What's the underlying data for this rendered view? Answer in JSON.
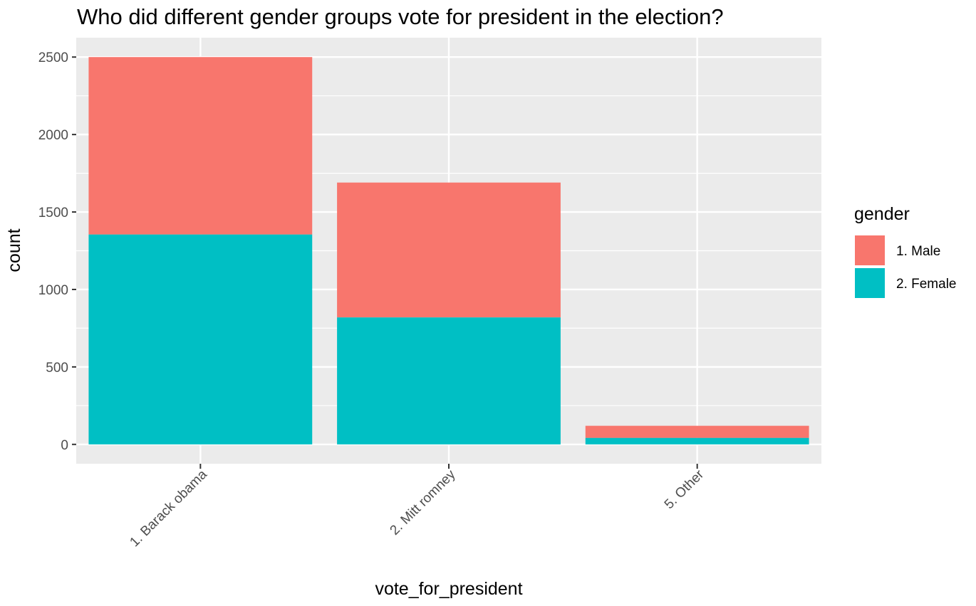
{
  "chart_data": {
    "type": "bar",
    "stacked": true,
    "title": "Who did different gender groups vote for president in the election?",
    "xlabel": "vote_for_president",
    "ylabel": "count",
    "categories": [
      "1. Barack obama",
      "2. Mitt romney",
      "5. Other"
    ],
    "series": [
      {
        "name": "1. Male",
        "values": [
          1145,
          870,
          78
        ],
        "color": "#F8766D"
      },
      {
        "name": "2. Female",
        "values": [
          1355,
          820,
          42
        ],
        "color": "#00BFC4"
      }
    ],
    "yticks": [
      0,
      500,
      1000,
      1500,
      2000,
      2500
    ],
    "ylim": [
      -125,
      2625
    ],
    "grid": true,
    "panel_color": "#EBEBEB",
    "legend": {
      "title": "gender",
      "position": "right"
    }
  }
}
